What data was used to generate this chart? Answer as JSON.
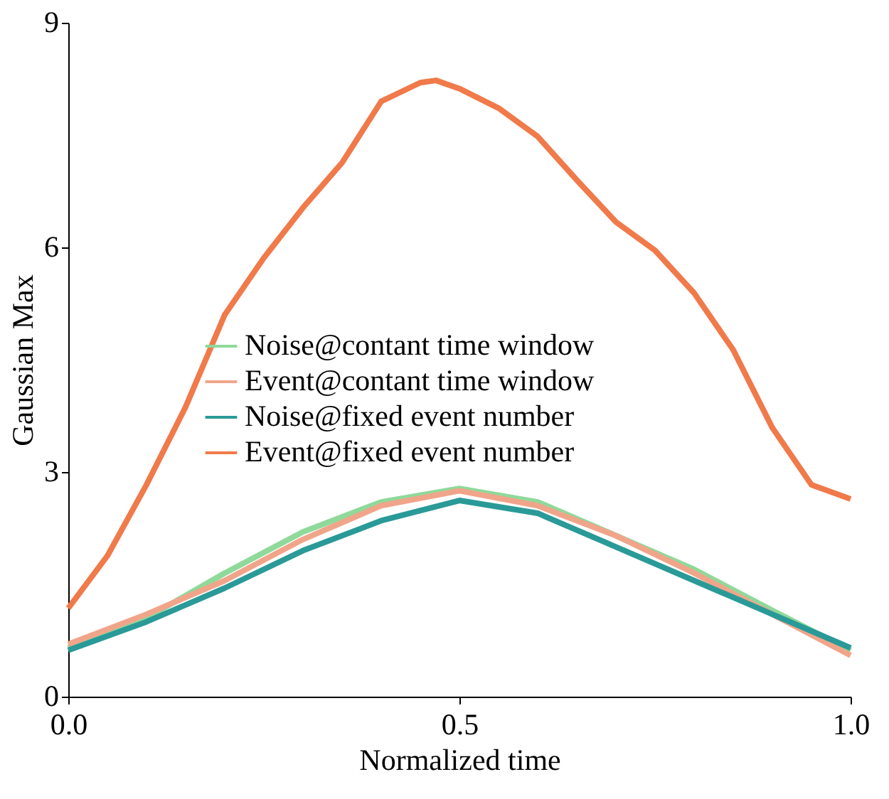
{
  "chart_data": {
    "type": "line",
    "xlabel": "Normalized time",
    "ylabel": "Gaussian Max",
    "xlim": [
      0,
      1
    ],
    "ylim": [
      0,
      9
    ],
    "xticks": [
      {
        "value": 0,
        "label": "0.0"
      },
      {
        "value": 0.5,
        "label": "0.5"
      },
      {
        "value": 1,
        "label": "1.0"
      }
    ],
    "yticks": [
      0,
      3,
      6,
      9
    ],
    "grid": false,
    "legend": "center",
    "series": [
      {
        "name": "Noise@contant time window",
        "color": "#8fd99a",
        "x": [
          0,
          0.1,
          0.2,
          0.3,
          0.4,
          0.5,
          0.6,
          0.7,
          0.8,
          0.9,
          1.0
        ],
        "values": [
          0.65,
          1.05,
          1.65,
          2.2,
          2.6,
          2.78,
          2.6,
          2.15,
          1.7,
          1.15,
          0.62
        ]
      },
      {
        "name": "Event@contant time window",
        "color": "#f0a58a",
        "x": [
          0,
          0.1,
          0.2,
          0.3,
          0.4,
          0.5,
          0.6,
          0.7,
          0.8,
          0.9,
          1.0
        ],
        "values": [
          0.7,
          1.1,
          1.55,
          2.1,
          2.55,
          2.75,
          2.55,
          2.15,
          1.65,
          1.1,
          0.55
        ]
      },
      {
        "name": "Noise@fixed event number",
        "color": "#2a9a98",
        "x": [
          0,
          0.1,
          0.2,
          0.3,
          0.4,
          0.5,
          0.6,
          0.7,
          0.8,
          0.9,
          1.0
        ],
        "values": [
          0.62,
          1.0,
          1.45,
          1.95,
          2.35,
          2.62,
          2.45,
          2.0,
          1.55,
          1.1,
          0.65
        ]
      },
      {
        "name": "Event@fixed event number",
        "color": "#f07a4a",
        "x": [
          0,
          0.05,
          0.1,
          0.15,
          0.2,
          0.25,
          0.3,
          0.35,
          0.4,
          0.45,
          0.47,
          0.5,
          0.55,
          0.6,
          0.65,
          0.7,
          0.75,
          0.8,
          0.85,
          0.9,
          0.95,
          1.0
        ],
        "values": [
          1.18,
          1.88,
          2.83,
          3.87,
          5.1,
          5.86,
          6.53,
          7.13,
          7.95,
          8.2,
          8.23,
          8.12,
          7.86,
          7.48,
          6.9,
          6.34,
          5.96,
          5.39,
          4.63,
          3.59,
          2.83,
          2.64
        ]
      }
    ]
  }
}
